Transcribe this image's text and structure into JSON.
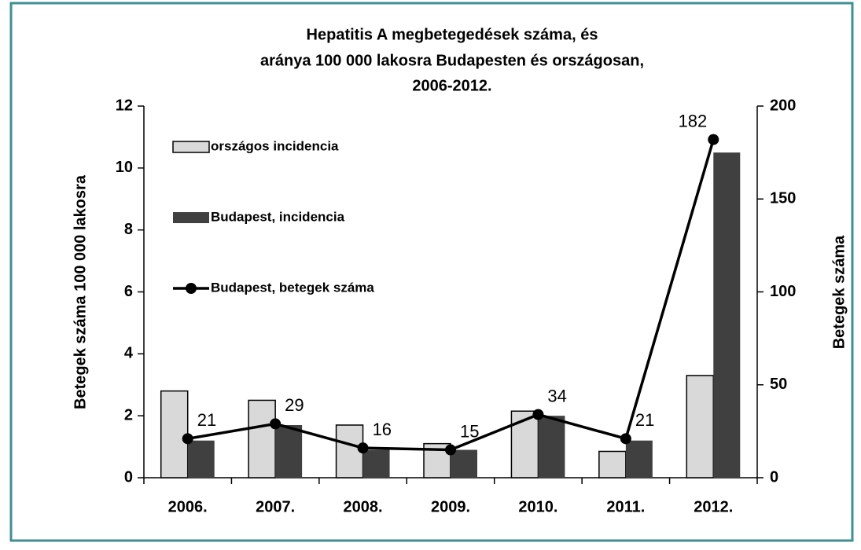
{
  "chart_data": {
    "type": "bar",
    "title": [
      "Hepatitis A megbetegedések száma, és",
      "aránya 100 000 lakosra Budapesten és országosan,",
      "2006-2012."
    ],
    "categories": [
      "2006.",
      "2007.",
      "2008.",
      "2009.",
      "2010.",
      "2011.",
      "2012."
    ],
    "series": [
      {
        "name": "országos incidencia",
        "color": "#d9d9d9",
        "values": [
          2.8,
          2.5,
          1.7,
          1.1,
          2.15,
          0.85,
          3.3
        ]
      },
      {
        "name": "Budapest, incidencia",
        "color": "#404040",
        "values": [
          1.2,
          1.7,
          0.9,
          0.9,
          2.0,
          1.2,
          10.5
        ]
      },
      {
        "name": "Budapest, betegek száma",
        "color": "#000000",
        "type": "line",
        "axis": "y2",
        "values": [
          21,
          29,
          16,
          15,
          34,
          21,
          182
        ]
      }
    ],
    "ylabel": "Betegek száma 100 000 lakosra",
    "y2label": "Betegek száma",
    "ylim": [
      0,
      12
    ],
    "yticks": [
      0,
      2,
      4,
      6,
      8,
      10,
      12
    ],
    "y2lim": [
      0,
      200
    ],
    "y2ticks": [
      0,
      50,
      100,
      150,
      200
    ],
    "grid": false
  }
}
